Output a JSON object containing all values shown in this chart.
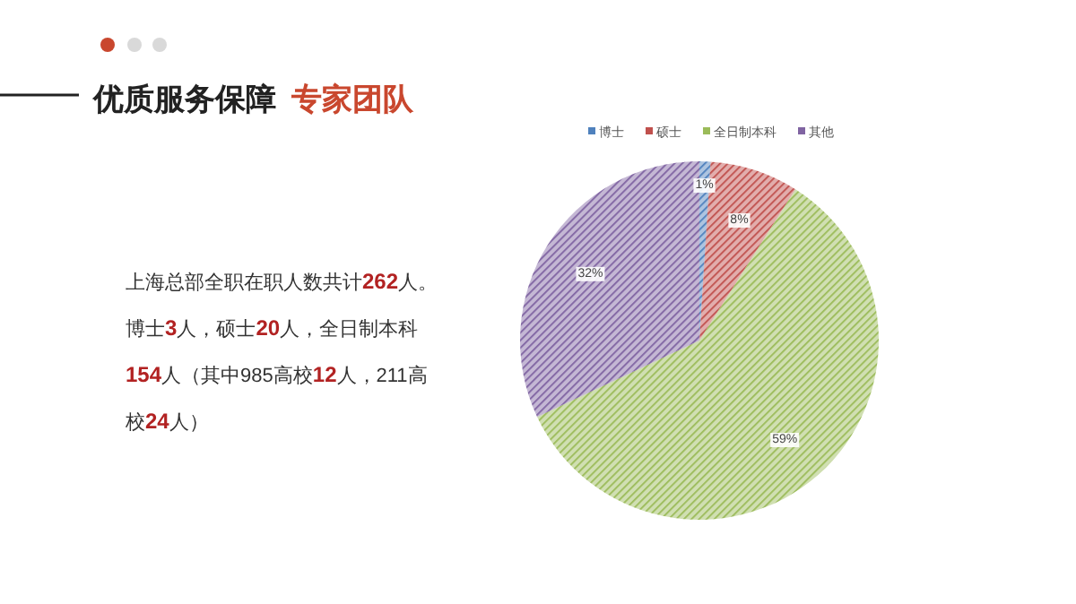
{
  "chart_data": {
    "type": "pie",
    "title": "优质服务保障 专家团队",
    "categories": [
      "博士",
      "硕士",
      "全日制本科",
      "其他"
    ],
    "values": [
      1,
      8,
      59,
      32
    ],
    "colors": [
      "#4f81bd",
      "#c0504d",
      "#9bbb59",
      "#8064a2"
    ],
    "value_labels": [
      "1%",
      "8%",
      "59%",
      "32%"
    ],
    "legend": "top",
    "annotations": [
      "上海总部全职在职人数共计262人。",
      "博士3人，硕士20人，全日制本科",
      "154人（其中985高校12人，211高",
      "校24人）"
    ]
  }
}
